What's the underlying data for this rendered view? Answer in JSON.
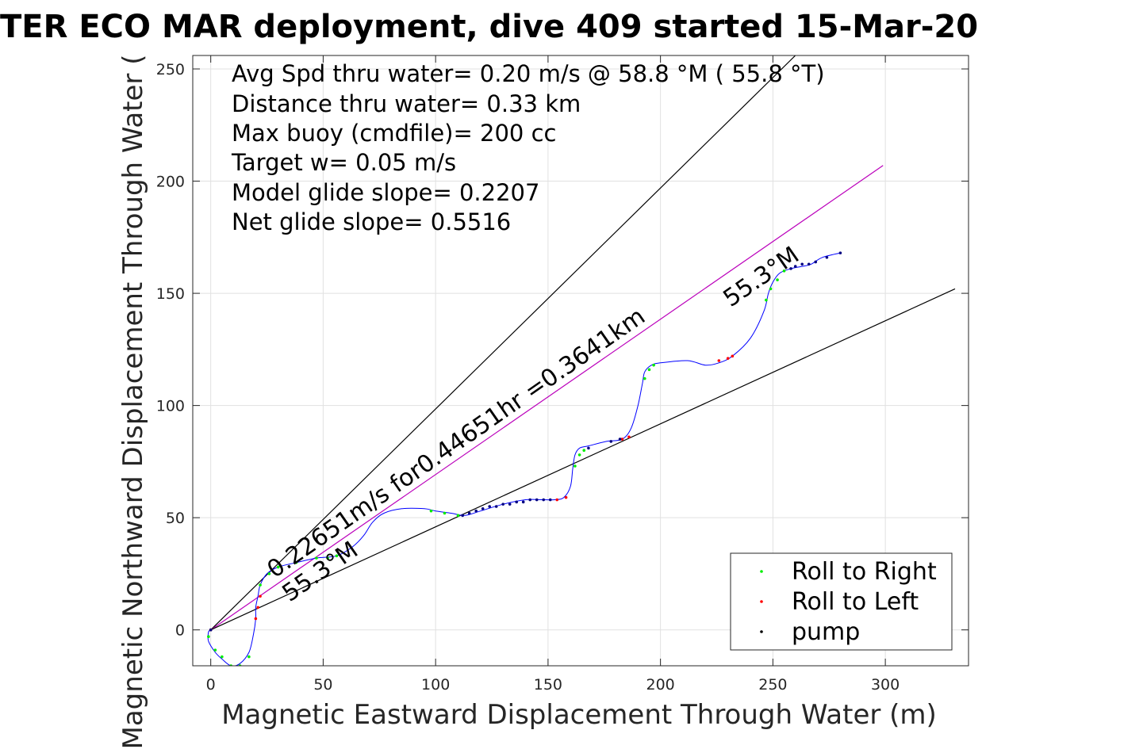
{
  "chart_data": {
    "type": "line",
    "title": "TER ECO MAR deployment, dive 409 started 15-Mar-20",
    "xlabel": "Magnetic Eastward Displacement Through Water (m)",
    "ylabel": "Magnetic Northward Displacement Through Water (",
    "xlim": [
      -8,
      337
    ],
    "ylim": [
      -16,
      256
    ],
    "xticks": [
      0,
      50,
      100,
      150,
      200,
      250,
      300
    ],
    "yticks": [
      0,
      50,
      100,
      150,
      200,
      250
    ],
    "grid": true,
    "info_lines": [
      "Avg Spd thru water=  0.20 m/s @  58.8 °M ( 55.8 °T)",
      "Distance thru water=  0.33 km",
      "Max buoy (cmdfile)= 200 cc",
      "Target w= 0.05 m/s",
      "Model glide slope= 0.2207",
      "Net glide slope= 0.5516"
    ],
    "annotations": {
      "course_label": "0.22651m/s for0.44651hr =0.3641km",
      "heading_upper": "55.3°M",
      "heading_lower": "55.3°M"
    },
    "legend": {
      "placement": "bottom-right",
      "entries": [
        {
          "label": "Roll to Right",
          "color": "#00ee00"
        },
        {
          "label": "Roll to Left",
          "color": "#ff0000"
        },
        {
          "label": "pump",
          "color": "#000000"
        }
      ]
    },
    "reference_lines": [
      {
        "role": "upper-bound",
        "color": "#000000",
        "x": [
          0,
          260
        ],
        "y": [
          0,
          256
        ]
      },
      {
        "role": "heading",
        "color": "#bb00bb",
        "x": [
          0,
          299
        ],
        "y": [
          0,
          207
        ]
      },
      {
        "role": "lower-bound",
        "color": "#000000",
        "x": [
          0,
          331
        ],
        "y": [
          0,
          152
        ]
      }
    ],
    "series": [
      {
        "role": "track",
        "color": "#0000ff",
        "x": [
          0,
          -1,
          -1,
          2,
          5,
          9,
          13,
          17,
          19,
          20,
          20,
          21,
          22,
          25,
          30,
          38,
          47,
          56,
          63,
          68,
          72,
          77,
          85,
          95,
          100,
          107,
          113,
          120,
          130,
          140,
          148,
          153,
          157,
          160,
          161,
          162,
          164,
          168,
          176,
          183,
          187,
          190,
          192,
          193,
          196,
          200,
          212,
          220,
          226,
          232,
          240,
          246,
          248,
          250,
          253,
          258,
          263,
          267,
          272,
          280
        ],
        "y": [
          0,
          -1,
          -5,
          -10,
          -13,
          -16,
          -15,
          -10,
          -2,
          5,
          10,
          15,
          20,
          25,
          28,
          30,
          32,
          33,
          37,
          42,
          48,
          52,
          54,
          54,
          53,
          52,
          51,
          53,
          56,
          58,
          58,
          58,
          59,
          64,
          72,
          78,
          81,
          82,
          84,
          85,
          90,
          100,
          110,
          115,
          118,
          119,
          120,
          118,
          119,
          122,
          130,
          142,
          150,
          155,
          159,
          161,
          162,
          163,
          166,
          168
        ]
      },
      {
        "role": "roll-right",
        "color": "#00ee00",
        "x": [
          -1,
          2,
          5,
          9,
          13,
          17,
          22,
          26,
          30,
          38,
          47,
          52,
          56,
          98,
          104,
          110,
          162,
          164,
          166,
          193,
          195,
          197,
          247,
          249,
          252,
          255
        ],
        "y": [
          -3,
          -9,
          -12,
          -16,
          -16,
          -12,
          20,
          25,
          28,
          30,
          32,
          32,
          33,
          53,
          52,
          51,
          73,
          78,
          80,
          112,
          116,
          118,
          147,
          152,
          156,
          160
        ]
      },
      {
        "role": "roll-left",
        "color": "#ff0000",
        "x": [
          0,
          20,
          21,
          22,
          154,
          158,
          183,
          186,
          226,
          230,
          232
        ],
        "y": [
          0,
          5,
          10,
          15,
          58,
          59,
          85,
          86,
          120,
          121,
          122
        ]
      },
      {
        "role": "pump",
        "color": "#000080",
        "x": [
          0,
          112,
          115,
          118,
          121,
          124,
          127,
          130,
          133,
          136,
          139,
          142,
          145,
          148,
          151,
          168,
          178,
          182,
          258,
          260,
          263,
          266,
          269,
          274,
          280
        ],
        "y": [
          0,
          51,
          52,
          53,
          54,
          55,
          55,
          56,
          56,
          57,
          57,
          58,
          58,
          58,
          58,
          81,
          84,
          85,
          161,
          162,
          163,
          163,
          164,
          166,
          168
        ]
      }
    ]
  }
}
